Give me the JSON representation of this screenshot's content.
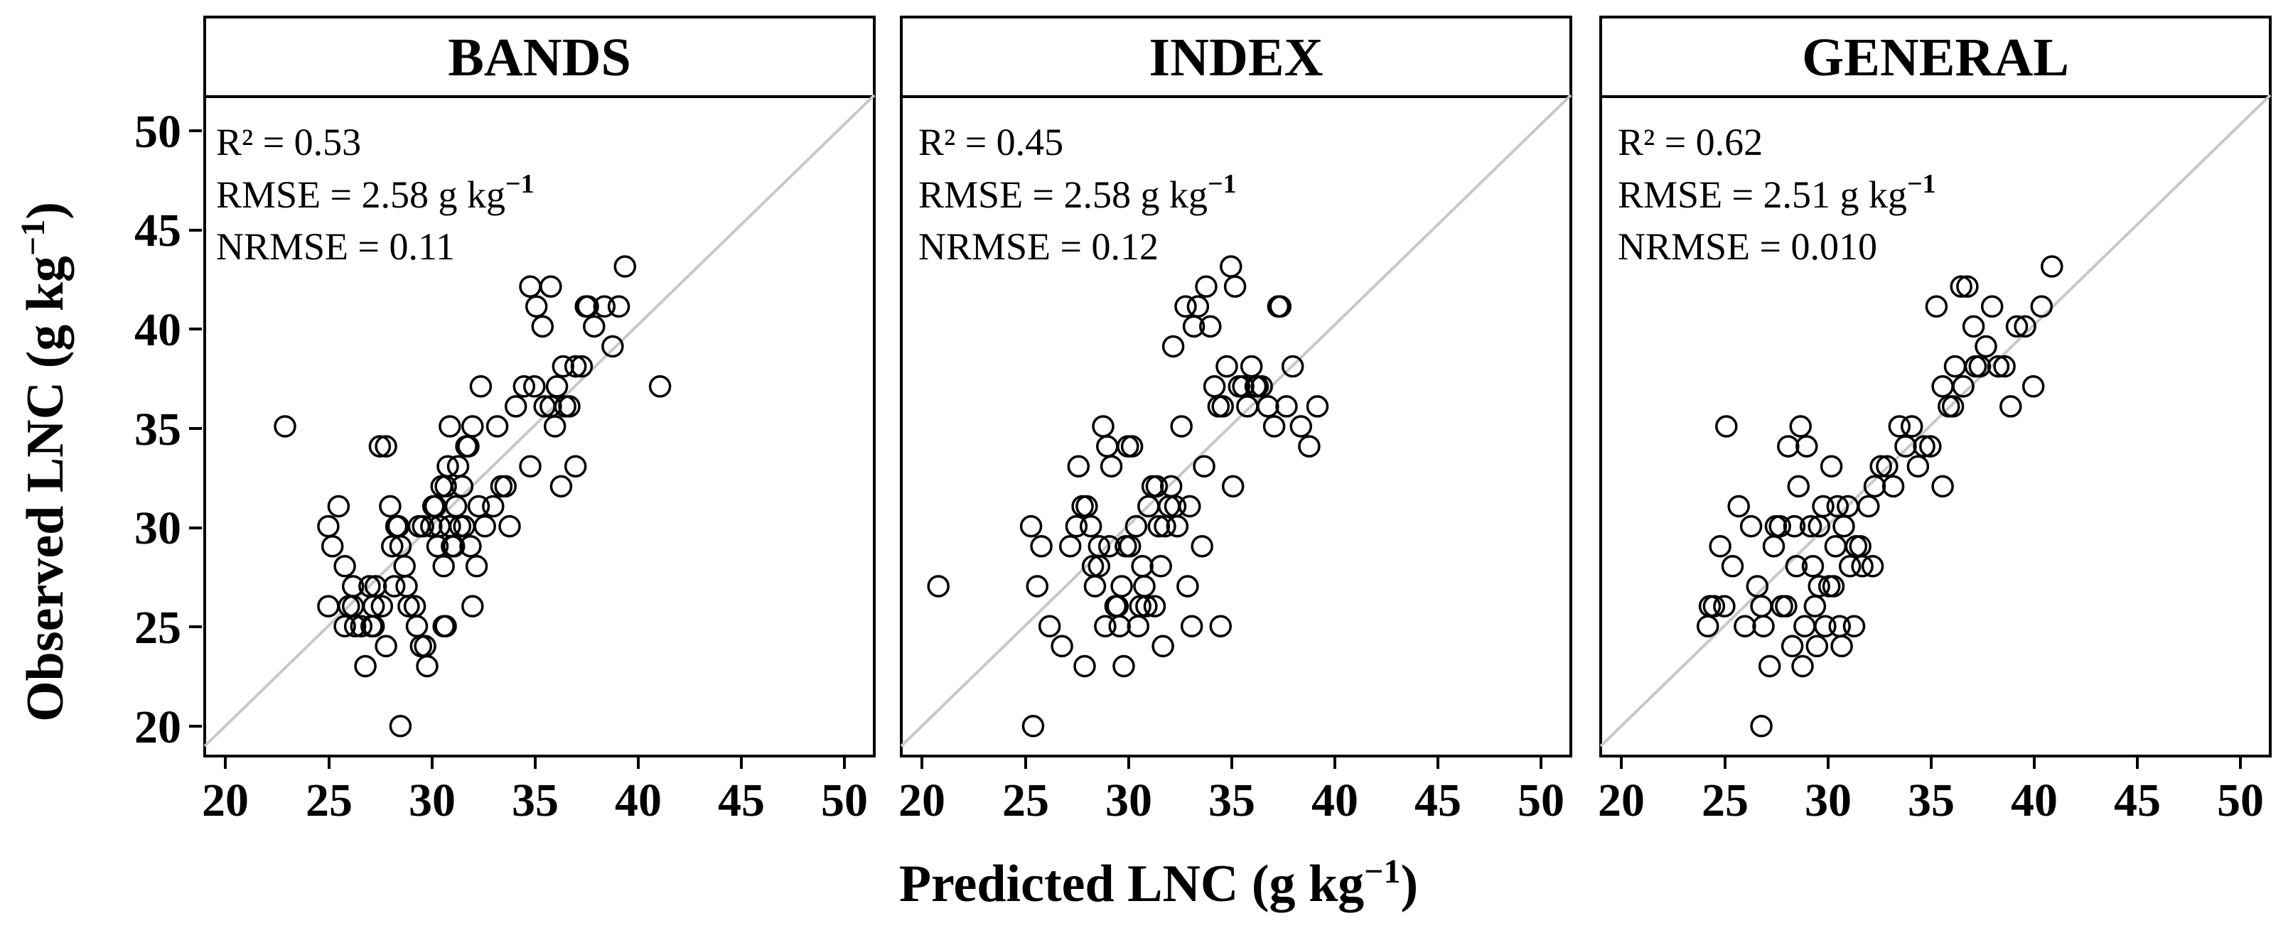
{
  "chart_data": {
    "type": "scatter",
    "xlabel": "Predicted LNC (g kg",
    "xlabel_sup": "−1",
    "xlabel_end": ")",
    "ylabel": "Observed LNC (g kg",
    "ylabel_sup": "−1",
    "ylabel_end": ")",
    "xlim": [
      19,
      51.5
    ],
    "ylim": [
      18.5,
      51.5
    ],
    "xticks": [
      20,
      25,
      30,
      35,
      40,
      45,
      50
    ],
    "yticks": [
      20,
      25,
      30,
      35,
      40,
      45,
      50
    ],
    "xtick_labels": [
      "20",
      "25",
      "30",
      "35",
      "40",
      "45",
      "50"
    ],
    "ytick_labels": [
      "20",
      "25",
      "30",
      "35",
      "40",
      "45",
      "50"
    ],
    "reference_line": "1:1",
    "colors": {
      "points": "#000000",
      "reference": "#c8c8c8",
      "frame": "#000000"
    },
    "panels": [
      {
        "title": "BANDS",
        "stats": {
          "r2": "R² = 0.53",
          "rmse": "RMSE = 2.58  g kg",
          "rmse_sup": "−1",
          "nrmse": "NRMSE = 0.11"
        },
        "x": [
          22.9,
          25.0,
          25.2,
          25.5,
          25.8,
          26.0,
          26.2,
          25.0,
          25.8,
          26.3,
          26.8,
          27.0,
          27.2,
          27.5,
          27.8,
          28.0,
          28.3,
          28.5,
          28.7,
          28.2,
          28.9,
          29.3,
          29.5,
          29.8,
          30.0,
          30.2,
          30.5,
          30.8,
          30.3,
          30.6,
          30.9,
          31.2,
          31.5,
          31.8,
          32.0,
          32.3,
          31.4,
          31.0,
          30.6,
          29.7,
          29.2,
          28.8,
          28.1,
          27.6,
          27.1,
          26.6,
          26.2,
          27.2,
          27.8,
          29.4,
          30.1,
          30.7,
          31.3,
          31.6,
          31.9,
          32.6,
          33.0,
          33.4,
          33.8,
          33.2,
          32.4,
          31.1,
          30.4,
          29.6,
          28.4,
          27.3,
          30.9,
          31.7,
          32.2,
          34.1,
          34.5,
          34.8,
          35.1,
          35.4,
          35.8,
          36.1,
          36.4,
          36.7,
          37.0,
          37.3,
          37.6,
          37.9,
          38.4,
          38.8,
          39.1,
          39.4,
          34.8,
          35.8,
          36.3,
          37.0,
          37.5,
          36.5,
          36.0,
          35.5,
          35.0,
          41.1,
          30.7,
          32.0,
          33.6,
          28.5
        ],
        "y": [
          35.0,
          30.0,
          29.0,
          31.0,
          28.0,
          26.0,
          27.0,
          26.0,
          25.0,
          25.0,
          23.0,
          27.0,
          26.0,
          34.0,
          34.0,
          31.0,
          30.0,
          29.0,
          28.0,
          27.0,
          26.0,
          25.0,
          24.0,
          23.0,
          30.0,
          31.0,
          32.0,
          33.0,
          29.0,
          28.0,
          30.0,
          31.0,
          32.0,
          34.0,
          35.0,
          31.0,
          30.0,
          29.0,
          25.0,
          24.0,
          26.0,
          27.0,
          29.0,
          26.0,
          25.0,
          25.0,
          26.0,
          25.0,
          24.0,
          30.0,
          31.0,
          32.0,
          33.0,
          30.0,
          29.0,
          30.0,
          31.0,
          32.0,
          30.0,
          35.0,
          37.0,
          29.0,
          30.0,
          30.0,
          30.0,
          27.0,
          35.0,
          34.0,
          28.0,
          36.0,
          37.0,
          42.0,
          41.0,
          40.0,
          42.0,
          37.0,
          38.0,
          36.0,
          33.0,
          38.0,
          41.0,
          40.0,
          41.0,
          39.0,
          41.0,
          43.0,
          33.0,
          36.0,
          32.0,
          38.0,
          41.0,
          36.0,
          35.0,
          36.0,
          37.0,
          37.0,
          25.0,
          26.0,
          32.0,
          20.0
        ]
      },
      {
        "title": "INDEX",
        "stats": {
          "r2": "R² = 0.45",
          "rmse": "RMSE = 2.58  g kg",
          "rmse_sup": "−1",
          "nrmse": "NRMSE = 0.12"
        },
        "x": [
          20.8,
          25.3,
          25.6,
          25.8,
          26.2,
          26.8,
          27.2,
          27.6,
          27.8,
          28.0,
          28.2,
          28.4,
          28.6,
          28.8,
          29.0,
          29.2,
          29.4,
          29.6,
          29.8,
          30.0,
          30.2,
          30.4,
          30.6,
          30.8,
          31.0,
          31.2,
          31.4,
          31.6,
          31.8,
          32.0,
          32.2,
          32.4,
          32.6,
          32.8,
          33.0,
          33.2,
          33.4,
          33.6,
          33.8,
          34.0,
          34.2,
          34.4,
          34.6,
          34.8,
          35.0,
          35.2,
          35.4,
          35.6,
          35.8,
          36.0,
          36.2,
          36.5,
          36.8,
          37.1,
          37.4,
          37.7,
          38.0,
          38.4,
          38.8,
          39.2,
          27.5,
          28.3,
          29.1,
          29.9,
          30.7,
          31.5,
          32.3,
          33.1,
          29.5,
          30.1,
          30.9,
          31.7,
          28.9,
          29.7,
          30.5,
          31.3,
          32.1,
          32.9,
          33.7,
          34.5,
          35.1,
          36.3,
          37.3,
          25.4,
          27.9,
          28.6
        ],
        "y": [
          27.0,
          30.0,
          27.0,
          29.0,
          25.0,
          24.0,
          29.0,
          33.0,
          31.0,
          31.0,
          30.0,
          27.0,
          28.0,
          35.0,
          34.0,
          33.0,
          26.0,
          25.0,
          23.0,
          34.0,
          34.0,
          30.0,
          26.0,
          27.0,
          31.0,
          32.0,
          32.0,
          28.0,
          30.0,
          31.0,
          39.0,
          30.0,
          35.0,
          41.0,
          31.0,
          40.0,
          41.0,
          29.0,
          42.0,
          40.0,
          37.0,
          36.0,
          36.0,
          38.0,
          43.0,
          42.0,
          37.0,
          37.0,
          36.0,
          38.0,
          37.0,
          37.0,
          36.0,
          35.0,
          41.0,
          36.0,
          38.0,
          35.0,
          34.0,
          36.0,
          30.0,
          28.0,
          29.0,
          29.0,
          28.0,
          30.0,
          31.0,
          25.0,
          26.0,
          29.0,
          26.0,
          24.0,
          25.0,
          27.0,
          25.0,
          26.0,
          32.0,
          27.0,
          33.0,
          25.0,
          32.0,
          37.0,
          41.0,
          20.0,
          23.0,
          29.0
        ]
      },
      {
        "title": "GENERAL",
        "stats": {
          "r2": "R² = 0.62",
          "rmse": "RMSE = 2.51  g kg",
          "rmse_sup": "−1",
          "nrmse": "NRMSE = 0.010"
        },
        "x": [
          24.2,
          24.5,
          24.8,
          25.1,
          25.4,
          25.7,
          26.0,
          26.3,
          26.6,
          26.9,
          27.2,
          27.5,
          27.8,
          28.1,
          28.4,
          28.7,
          29.0,
          29.3,
          29.6,
          29.9,
          30.2,
          30.5,
          30.8,
          31.1,
          31.4,
          31.7,
          32.0,
          32.3,
          32.6,
          32.9,
          33.2,
          33.5,
          33.8,
          34.1,
          34.4,
          34.7,
          35.0,
          35.3,
          35.6,
          35.9,
          36.2,
          36.5,
          36.8,
          37.1,
          37.4,
          37.7,
          38.0,
          38.3,
          38.6,
          38.9,
          39.2,
          39.6,
          40.0,
          40.4,
          40.9,
          26.8,
          27.4,
          28.0,
          28.6,
          29.2,
          29.8,
          30.4,
          31.0,
          31.6,
          32.2,
          28.3,
          28.9,
          29.5,
          30.1,
          30.7,
          31.3,
          27.7,
          28.5,
          29.4,
          30.3,
          24.3,
          25.0,
          26.8,
          28.8,
          29.6,
          30.6,
          35.6,
          36.1,
          36.6,
          37.2
        ],
        "y": [
          25.0,
          26.0,
          29.0,
          35.0,
          28.0,
          31.0,
          25.0,
          30.0,
          27.0,
          25.0,
          23.0,
          30.0,
          26.0,
          34.0,
          30.0,
          35.0,
          34.0,
          28.0,
          27.0,
          25.0,
          33.0,
          31.0,
          30.0,
          28.0,
          29.0,
          28.0,
          31.0,
          32.0,
          33.0,
          33.0,
          32.0,
          35.0,
          34.0,
          35.0,
          33.0,
          34.0,
          34.0,
          41.0,
          32.0,
          36.0,
          38.0,
          42.0,
          42.0,
          40.0,
          38.0,
          39.0,
          41.0,
          38.0,
          38.0,
          36.0,
          40.0,
          40.0,
          37.0,
          41.0,
          43.0,
          26.0,
          29.0,
          26.0,
          32.0,
          30.0,
          31.0,
          29.0,
          31.0,
          29.0,
          28.0,
          24.0,
          25.0,
          24.0,
          27.0,
          24.0,
          25.0,
          30.0,
          28.0,
          26.0,
          27.0,
          26.0,
          26.0,
          20.0,
          23.0,
          30.0,
          25.0,
          37.0,
          36.0,
          37.0,
          38.0
        ]
      }
    ]
  }
}
